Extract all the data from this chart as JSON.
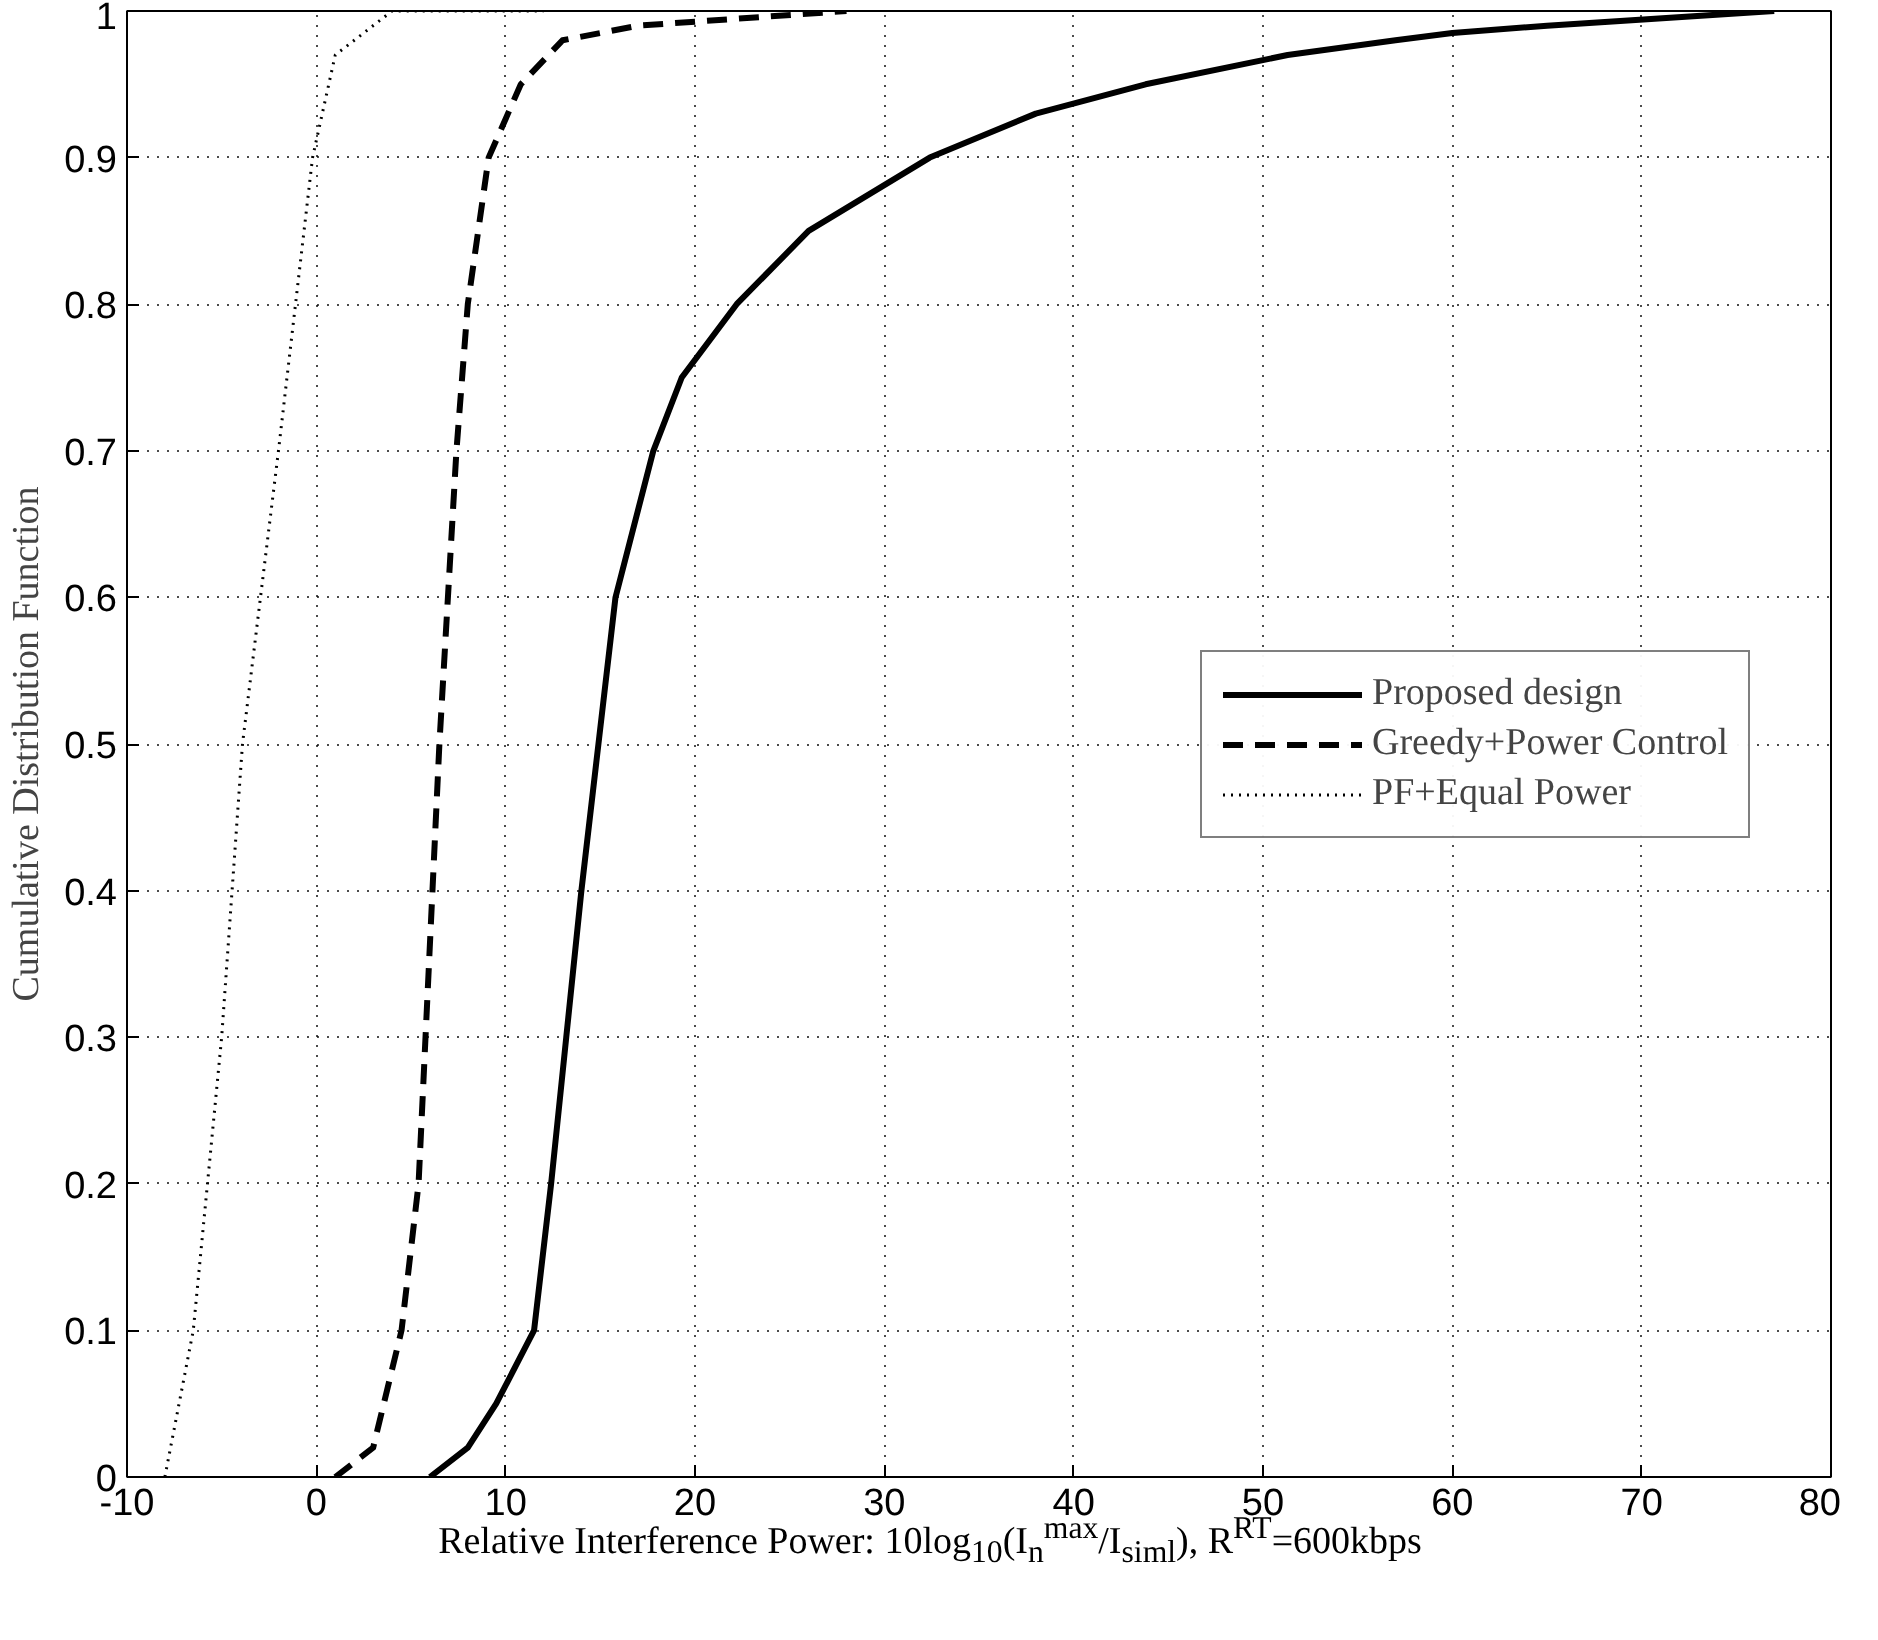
{
  "chart_data": {
    "type": "line",
    "xlabel": "Relative Interference Power: 10log$_{10}$(I$_{n}$$^{max}$/I$_{siml}$), R$^{RT}$=600kbps",
    "ylabel": "Cumulative Distribution Function",
    "xlim": [
      -10,
      80
    ],
    "ylim": [
      0,
      1
    ],
    "xticks": [
      -10,
      0,
      10,
      20,
      30,
      40,
      50,
      60,
      70,
      80
    ],
    "yticks": [
      0,
      0.1,
      0.2,
      0.3,
      0.4,
      0.5,
      0.6,
      0.7,
      0.8,
      0.9,
      1
    ],
    "grid": true,
    "legend": "right",
    "marker": "none",
    "series": [
      {
        "name": "Proposed design",
        "color": "#000000",
        "line_style": "solid",
        "x": [
          6,
          8,
          9.5,
          11.5,
          12.4,
          13.2,
          14,
          14.9,
          15.8,
          17.8,
          19.3,
          22.2,
          26,
          32.4,
          38,
          43.8,
          51.3,
          57,
          60,
          65,
          77
        ],
        "values": [
          0,
          0.02,
          0.05,
          0.1,
          0.2,
          0.3,
          0.4,
          0.5,
          0.6,
          0.7,
          0.75,
          0.8,
          0.85,
          0.9,
          0.93,
          0.95,
          0.97,
          0.98,
          0.985,
          0.99,
          1
        ]
      },
      {
        "name": "Greedy+Power Control",
        "color": "#000000",
        "line_style": "dashed",
        "x": [
          1,
          3,
          4.5,
          5.4,
          6.5,
          7.4,
          8,
          9.1,
          10.8,
          13,
          17,
          28
        ],
        "values": [
          0,
          0.02,
          0.1,
          0.2,
          0.5,
          0.7,
          0.8,
          0.9,
          0.95,
          0.98,
          0.99,
          1
        ]
      },
      {
        "name": "PF+Equal Power",
        "color": "#000000",
        "line_style": "dotted",
        "x": [
          -8,
          -6.5,
          -5,
          -3.9,
          -2,
          -0.2,
          1,
          4,
          12
        ],
        "values": [
          0,
          0.1,
          0.3,
          0.5,
          0.7,
          0.9,
          0.97,
          1,
          1
        ]
      }
    ]
  }
}
